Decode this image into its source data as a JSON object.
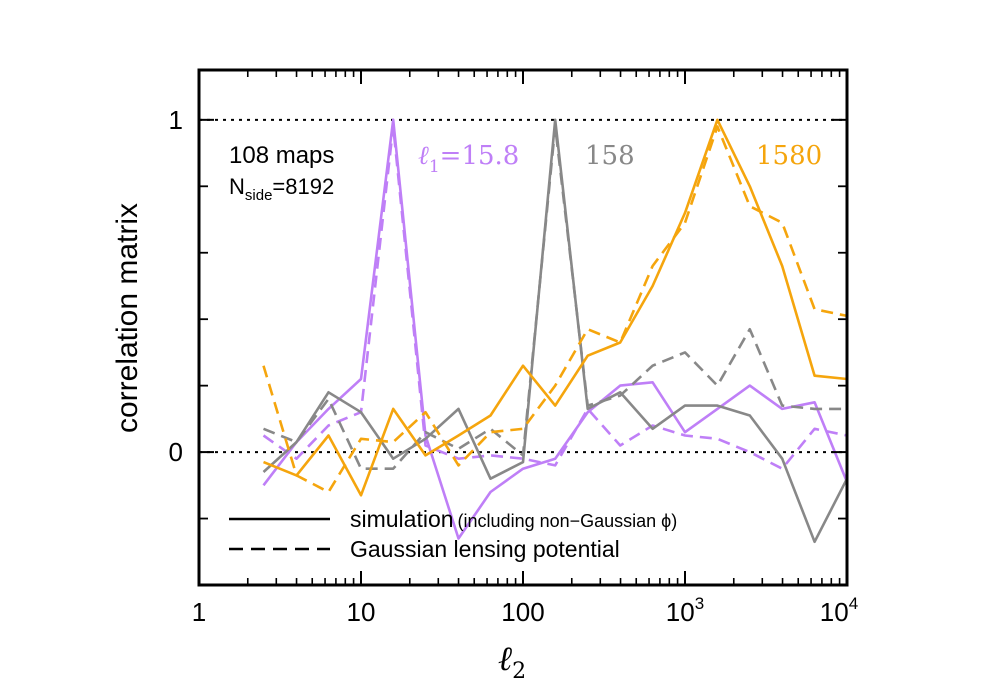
{
  "chart_data": {
    "type": "line",
    "title": "",
    "xlabel": "ℓ",
    "xlabel_sub": "2",
    "ylabel": "correlation matrix",
    "xscale": "log",
    "xlim": [
      1,
      10000
    ],
    "ylim": [
      -0.4,
      1.15
    ],
    "grid": false,
    "reference_lines": [
      0,
      1
    ],
    "x_ticks": [
      {
        "value": 1,
        "label": "1"
      },
      {
        "value": 10,
        "label": "10"
      },
      {
        "value": 100,
        "label": "100"
      },
      {
        "value": 1000,
        "base": "10",
        "exp": "3"
      },
      {
        "value": 10000,
        "base": "10",
        "exp": "4"
      }
    ],
    "y_ticks": [
      {
        "value": 0,
        "label": "0"
      },
      {
        "value": 1,
        "label": "1"
      }
    ],
    "y_minor_ticks": [
      -0.2,
      0.2,
      0.4,
      0.6,
      0.8
    ],
    "annotations": {
      "maps": "108 maps",
      "nside_main": "N",
      "nside_sub": "side",
      "nside_value": "=8192",
      "l1_symbol": "ℓ",
      "l1_sub": "1",
      "l1_value": "=15.8",
      "label_158": "158",
      "label_1580": "1580"
    },
    "legend": {
      "placement": "bottom-left",
      "entries": [
        {
          "style": "solid",
          "label": "simulation",
          "detail": "(including non−Gaussian ϕ)"
        },
        {
          "style": "dashed",
          "label": "Gaussian lensing potential"
        }
      ]
    },
    "colors": {
      "purple": "#bf7ff7",
      "gray": "#888888",
      "orange": "#f5a50d"
    },
    "x": [
      2.5,
      4,
      6.3,
      10,
      15.8,
      25,
      40,
      63,
      100,
      158,
      251,
      398,
      631,
      1000,
      1585,
      2512,
      3981,
      6310,
      10000
    ],
    "series": [
      {
        "color": "purple",
        "style": "solid",
        "ell1": 15.8,
        "values": [
          -0.1,
          0.03,
          0.13,
          0.22,
          1.0,
          0.05,
          -0.26,
          -0.12,
          -0.05,
          -0.02,
          0.12,
          0.2,
          0.21,
          0.06,
          0.13,
          0.2,
          0.13,
          0.15,
          -0.09
        ]
      },
      {
        "color": "purple",
        "style": "dashed",
        "ell1": 15.8,
        "values": [
          0.05,
          -0.02,
          0.08,
          0.12,
          0.98,
          0.02,
          -0.02,
          -0.01,
          -0.02,
          -0.04,
          0.13,
          0.02,
          0.08,
          0.05,
          0.04,
          0.0,
          -0.05,
          0.07,
          0.05
        ]
      },
      {
        "color": "gray",
        "style": "solid",
        "ell1": 158,
        "values": [
          -0.06,
          0.03,
          0.18,
          0.12,
          -0.02,
          0.04,
          0.13,
          -0.08,
          -0.03,
          1.0,
          0.13,
          0.18,
          0.07,
          0.14,
          0.14,
          0.11,
          -0.02,
          -0.27,
          -0.08
        ]
      },
      {
        "color": "gray",
        "style": "dashed",
        "ell1": 158,
        "values": [
          0.07,
          0.03,
          0.16,
          -0.05,
          -0.05,
          0.06,
          0.01,
          0.07,
          -0.01,
          0.98,
          0.14,
          0.17,
          0.26,
          0.3,
          0.2,
          0.37,
          0.14,
          0.13,
          0.13
        ]
      },
      {
        "color": "orange",
        "style": "solid",
        "ell1": 1580,
        "values": [
          -0.03,
          -0.07,
          0.05,
          -0.13,
          0.13,
          -0.01,
          0.05,
          0.11,
          0.26,
          0.14,
          0.29,
          0.33,
          0.5,
          0.72,
          1.0,
          0.8,
          0.56,
          0.23,
          0.22
        ]
      },
      {
        "color": "orange",
        "style": "dashed",
        "ell1": 1580,
        "values": [
          0.26,
          -0.07,
          -0.12,
          0.04,
          0.03,
          0.12,
          -0.04,
          0.06,
          0.07,
          0.2,
          0.37,
          0.33,
          0.56,
          0.69,
          0.98,
          0.74,
          0.69,
          0.43,
          0.41
        ]
      }
    ]
  }
}
